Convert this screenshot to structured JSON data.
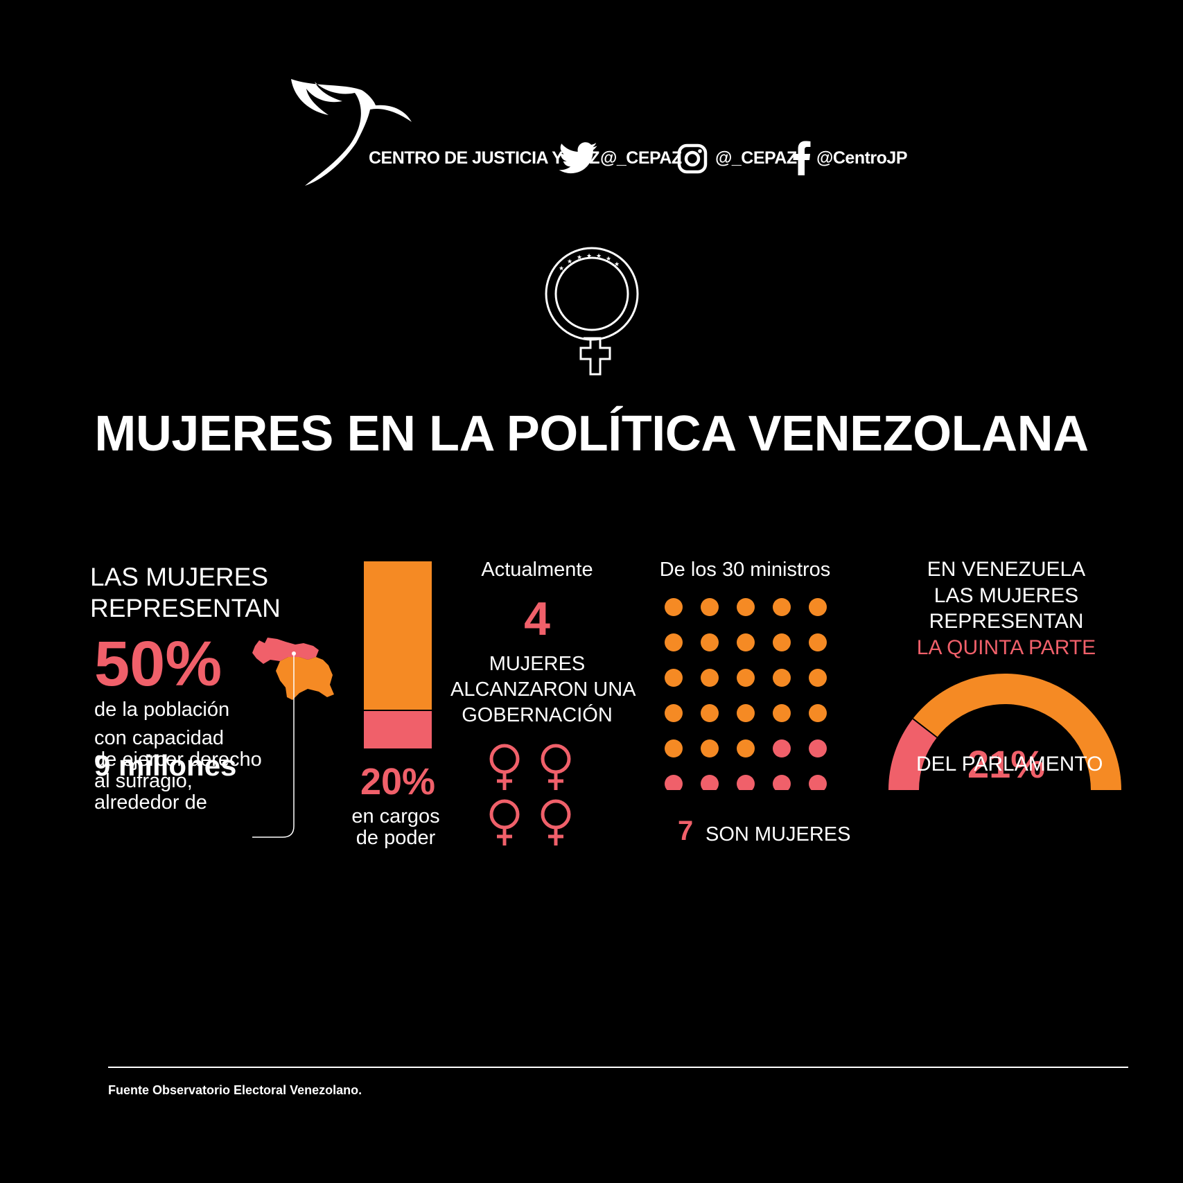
{
  "header": {
    "org_name": "CENTRO DE JUSTICIA Y PAZ",
    "twitter_handle": "@_CEPAZ",
    "instagram_handle": "@_CEPAZ",
    "facebook_handle": "@CentroJP"
  },
  "title": "MUJERES EN LA POLÍTICA VENEZOLANA",
  "colors": {
    "orange": "#f58a24",
    "pink": "#f0606a",
    "background": "#000000",
    "text": "#ffffff"
  },
  "icons": [
    "dove-logo-icon",
    "twitter-icon",
    "instagram-icon",
    "facebook-icon",
    "female-symbol-icon",
    "venezuela-map-icon"
  ],
  "panel1": {
    "heading_line1": "LAS MUJERES",
    "heading_line2": "REPRESENTAN",
    "percent": "50%",
    "desc_line1": "de la población",
    "desc_line2": "con capacidad",
    "desc_line3": "de ejercer derecho",
    "desc_line4": "al sufragio,",
    "desc_line5": "alrededor de",
    "millions": "9 millones"
  },
  "panel2": {
    "percent": "20%",
    "fill_fraction": 0.2,
    "label_line1": "en cargos",
    "label_line2": "de poder"
  },
  "panel3": {
    "intro": "Actualmente",
    "number": "4",
    "text_line1": "MUJERES",
    "text_line2": "ALCANZARON UNA",
    "text_line3": "GOBERNACIÓN",
    "icon_count": 4
  },
  "panel4": {
    "intro": "De los 30 ministros",
    "total": 30,
    "women": 7,
    "number": "7",
    "label": "SON MUJERES"
  },
  "panel5": {
    "line1": "EN VENEZUELA",
    "line2": "LAS MUJERES",
    "line3": "REPRESENTAN",
    "highlight": "LA QUINTA PARTE",
    "percent": "21%",
    "fraction": 0.21,
    "label": "DEL PARLAMENTO"
  },
  "footer": {
    "source": "Fuente Observatorio Electoral Venezolano."
  }
}
